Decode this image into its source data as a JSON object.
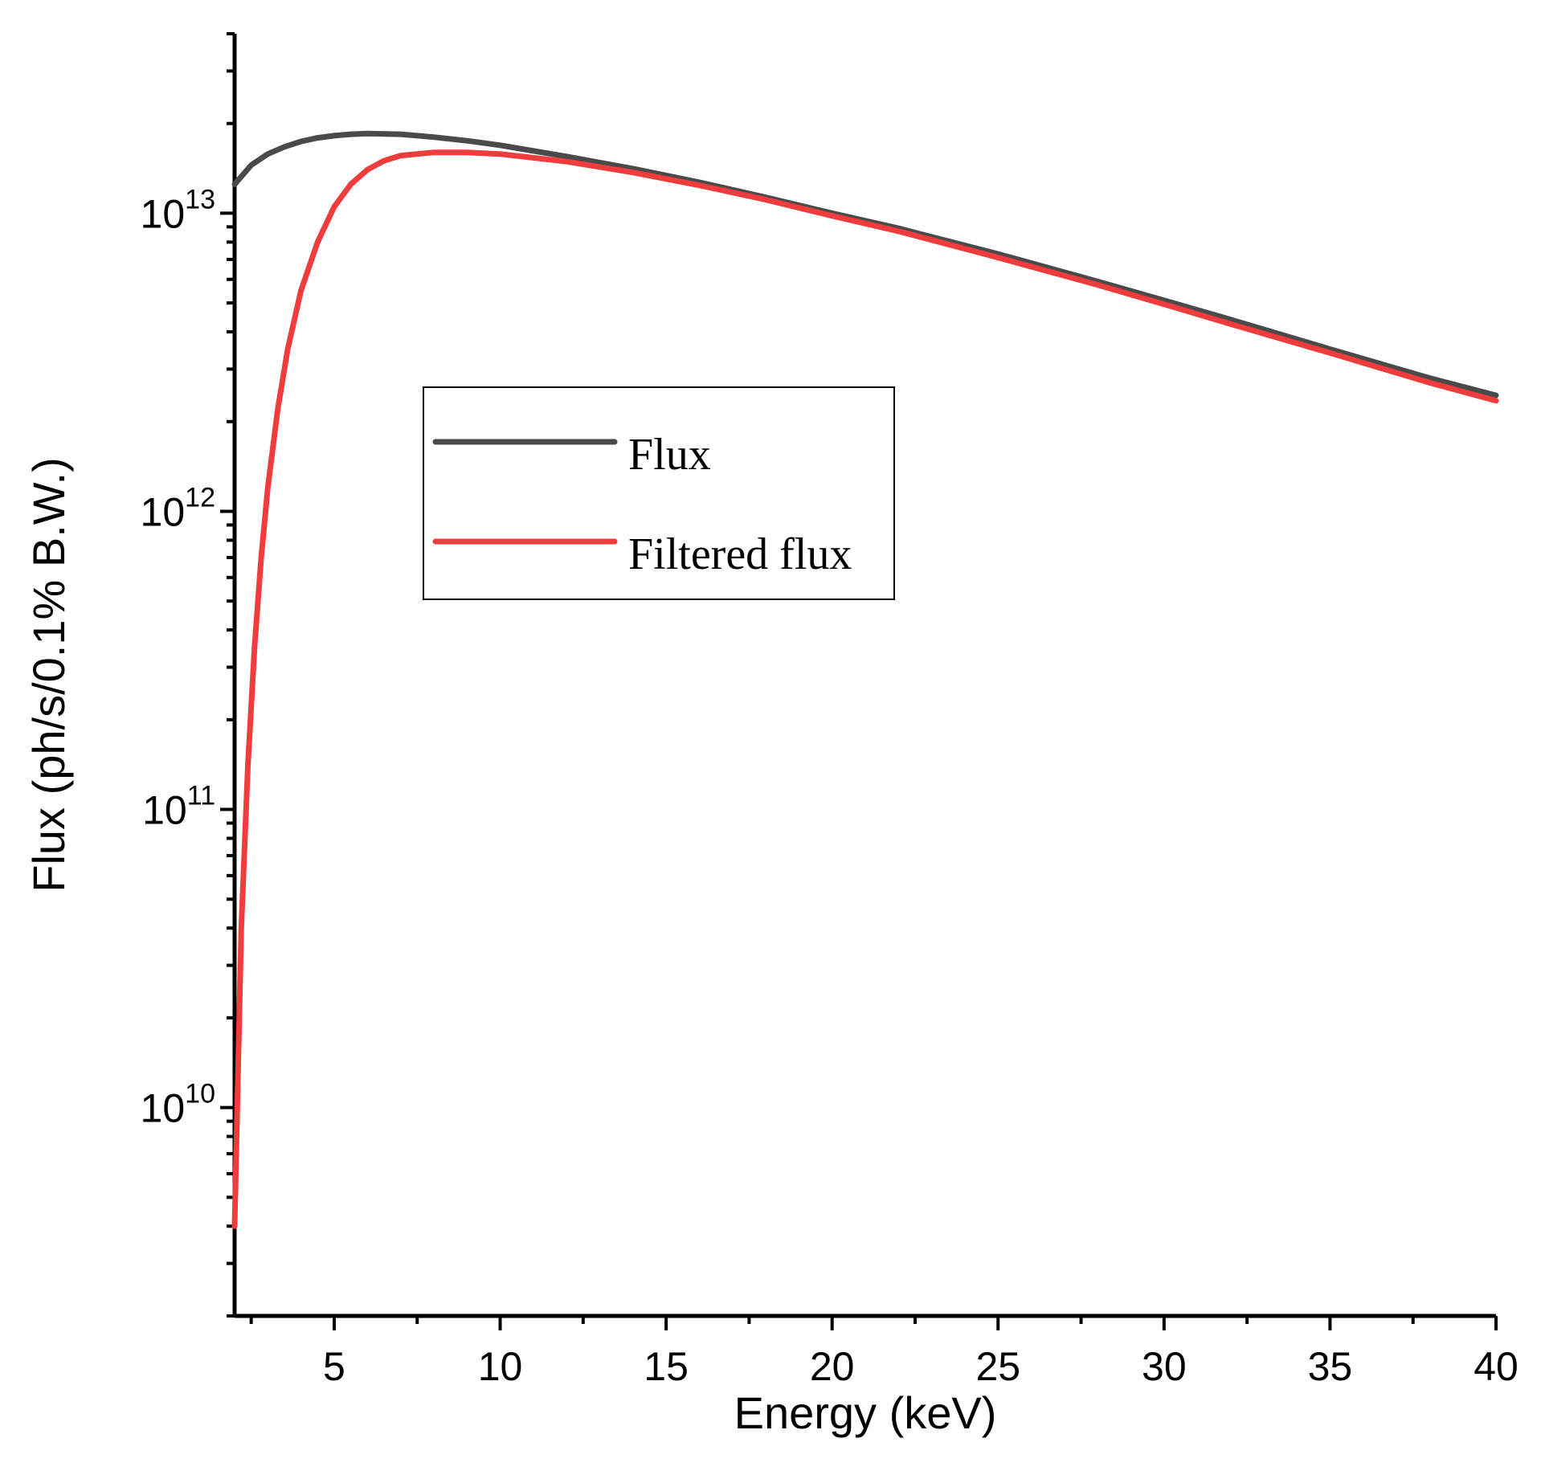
{
  "chart_data": {
    "type": "line",
    "title": "",
    "xlabel": "Energy (keV)",
    "ylabel": "Flux (ph/s/0.1% B.W.)",
    "xlim": [
      2,
      40
    ],
    "ylim": [
      2000000000.0,
      40000000000000.0
    ],
    "yscale": "log",
    "x_ticks": [
      5,
      10,
      15,
      20,
      25,
      30,
      35,
      40
    ],
    "x_tick_labels": [
      "5",
      "10",
      "15",
      "20",
      "25",
      "30",
      "35",
      "40"
    ],
    "y_tick_labels": [
      {
        "value": 10000000000.0,
        "base": "10",
        "exponent": "10"
      },
      {
        "value": 100000000000.0,
        "base": "10",
        "exponent": "11"
      },
      {
        "value": 1000000000000.0,
        "base": "10",
        "exponent": "12"
      },
      {
        "value": 10000000000000.0,
        "base": "10",
        "exponent": "13"
      }
    ],
    "grid": false,
    "legend": {
      "placement": "center-left",
      "entries": [
        "Flux",
        "Filtered flux"
      ]
    },
    "series": [
      {
        "name": "Flux",
        "color": "#4a4a4a",
        "x": [
          2,
          2.5,
          3,
          3.5,
          4,
          4.5,
          5,
          5.5,
          6,
          7,
          8,
          9,
          10,
          12,
          14,
          16,
          18,
          20,
          22,
          25,
          28,
          30,
          32,
          35,
          38,
          40
        ],
        "y": [
          12500000000000.0,
          14500000000000.0,
          15800000000000.0,
          16700000000000.0,
          17400000000000.0,
          17900000000000.0,
          18200000000000.0,
          18400000000000.0,
          18500000000000.0,
          18400000000000.0,
          18000000000000.0,
          17500000000000.0,
          16900000000000.0,
          15500000000000.0,
          14100000000000.0,
          12700000000000.0,
          11300000000000.0,
          10000000000000.0,
          8900000000000.0,
          7300000000000.0,
          5900000000000.0,
          5100000000000.0,
          4400000000000.0,
          3500000000000.0,
          2800000000000.0,
          2450000000000.0
        ]
      },
      {
        "name": "Filtered flux",
        "color": "#f03c3c",
        "x": [
          2,
          2.2,
          2.4,
          2.6,
          2.8,
          3,
          3.3,
          3.6,
          4,
          4.5,
          5,
          5.5,
          6,
          6.5,
          7,
          8,
          9,
          10,
          12,
          14,
          16,
          18,
          20,
          22,
          25,
          28,
          30,
          32,
          35,
          38,
          40
        ],
        "y": [
          4000000000.0,
          40000000000.0,
          140000000000.0,
          350000000000.0,
          700000000000.0,
          1200000000000.0,
          2200000000000.0,
          3500000000000.0,
          5500000000000.0,
          8000000000000.0,
          10500000000000.0,
          12500000000000.0,
          14000000000000.0,
          15000000000000.0,
          15600000000000.0,
          16000000000000.0,
          16000000000000.0,
          15800000000000.0,
          14900000000000.0,
          13700000000000.0,
          12400000000000.0,
          11100000000000.0,
          9800000000000.0,
          8700000000000.0,
          7100000000000.0,
          5750000000000.0,
          4950000000000.0,
          4250000000000.0,
          3400000000000.0,
          2700000000000.0,
          2350000000000.0
        ]
      }
    ]
  }
}
